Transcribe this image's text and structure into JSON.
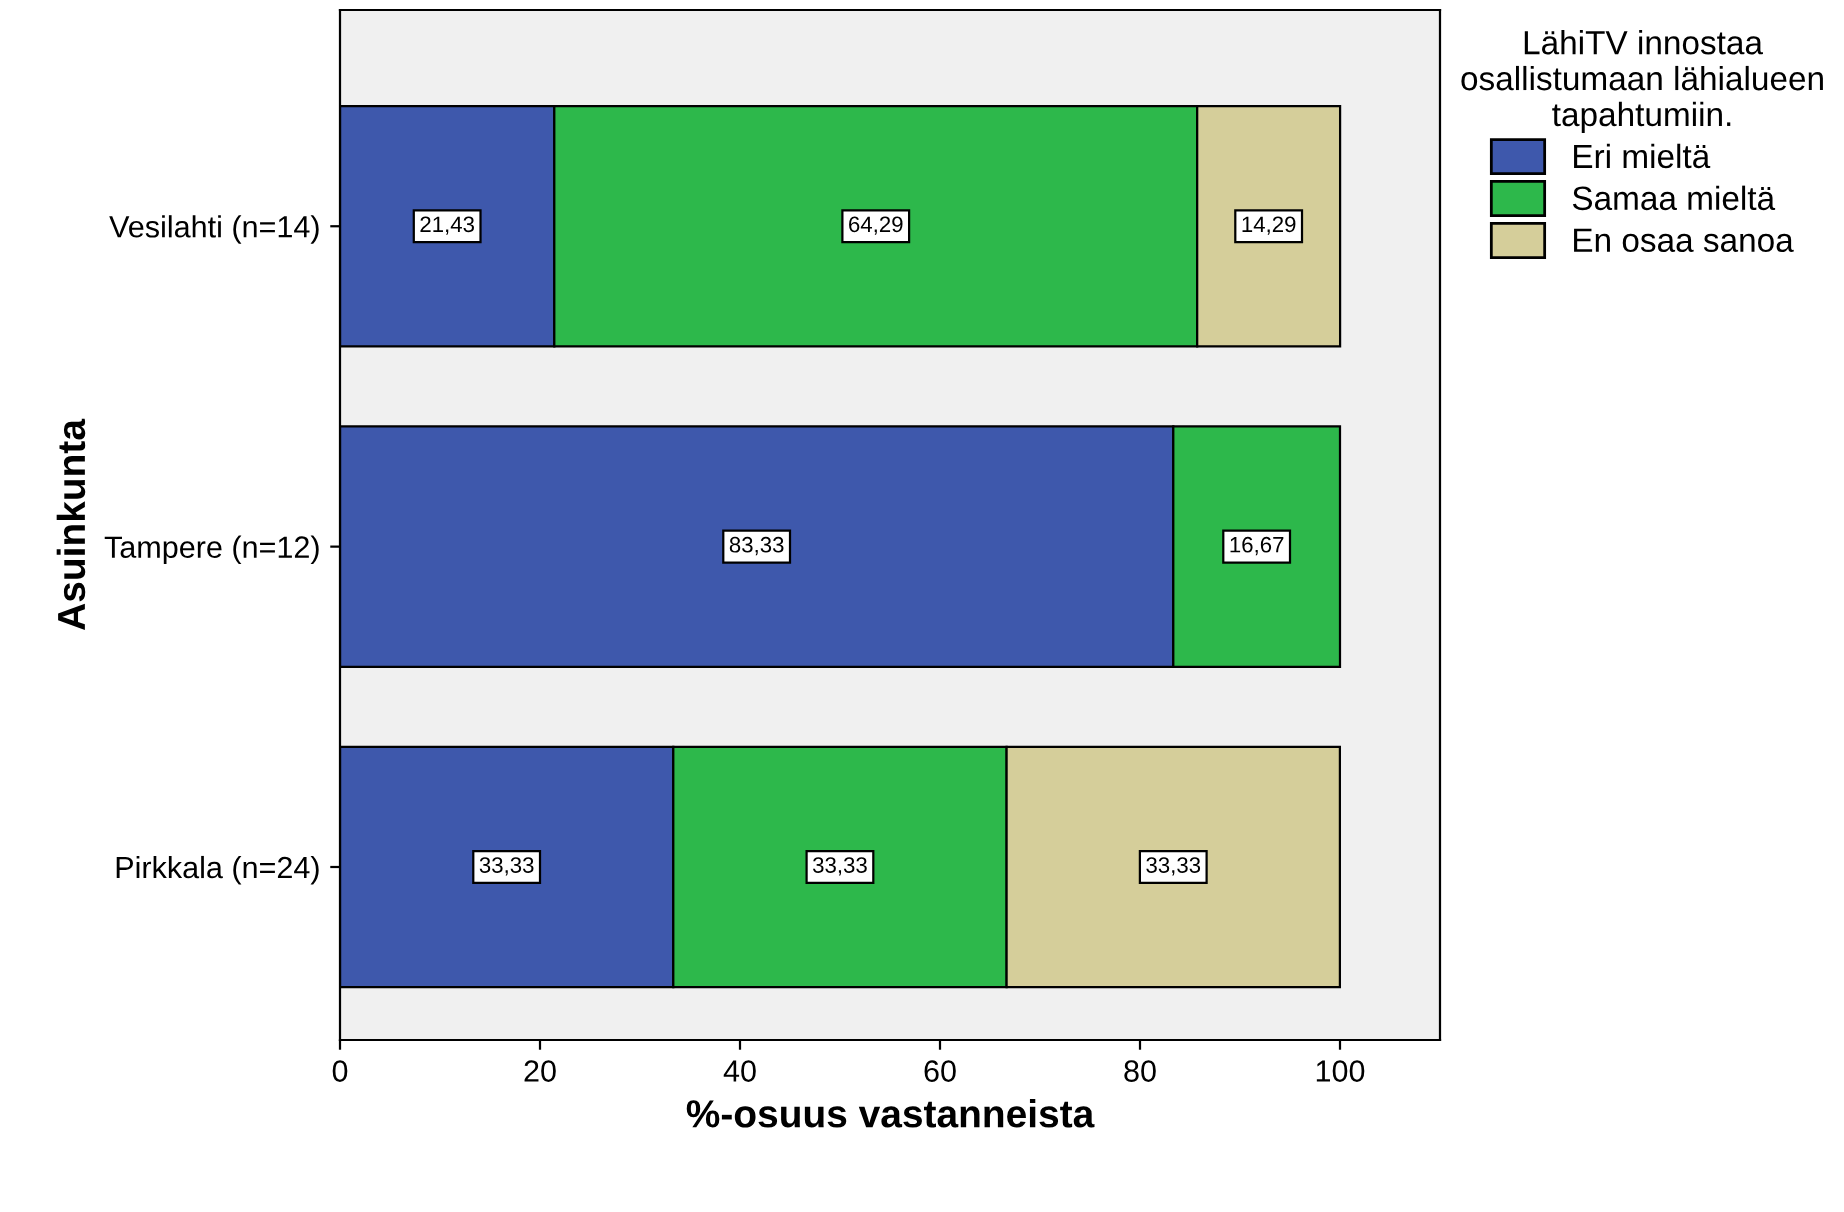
{
  "chart_data": {
    "type": "bar",
    "orientation": "horizontal",
    "stacked": true,
    "categories": [
      "Vesilahti (n=14)",
      "Tampere (n=12)",
      "Pirkkala (n=24)"
    ],
    "series": [
      {
        "name": "Eri mieltä",
        "color": "#3e58ac",
        "values": [
          21.43,
          83.33,
          33.33
        ],
        "value_labels": [
          "21,43",
          "83,33",
          "33,33"
        ]
      },
      {
        "name": "Samaa mieltä",
        "color": "#2db84b",
        "values": [
          64.29,
          16.67,
          33.33
        ],
        "value_labels": [
          "64,29",
          "16,67",
          "33,33"
        ]
      },
      {
        "name": "En osaa sanoa",
        "color": "#d5ce9a",
        "values": [
          14.29,
          null,
          33.33
        ],
        "value_labels": [
          "14,29",
          null,
          "33,33"
        ]
      }
    ],
    "xlim": [
      0,
      110
    ],
    "xticks": [
      0,
      20,
      40,
      60,
      80,
      100
    ],
    "xlabel": "%-osuus vastanneista",
    "ylabel": "Asuinkunta",
    "legend_title": "LähiTV innostaa\nosallistumaan lähialueen\ntapahtumiin.",
    "legend": "top right",
    "grid": false
  }
}
